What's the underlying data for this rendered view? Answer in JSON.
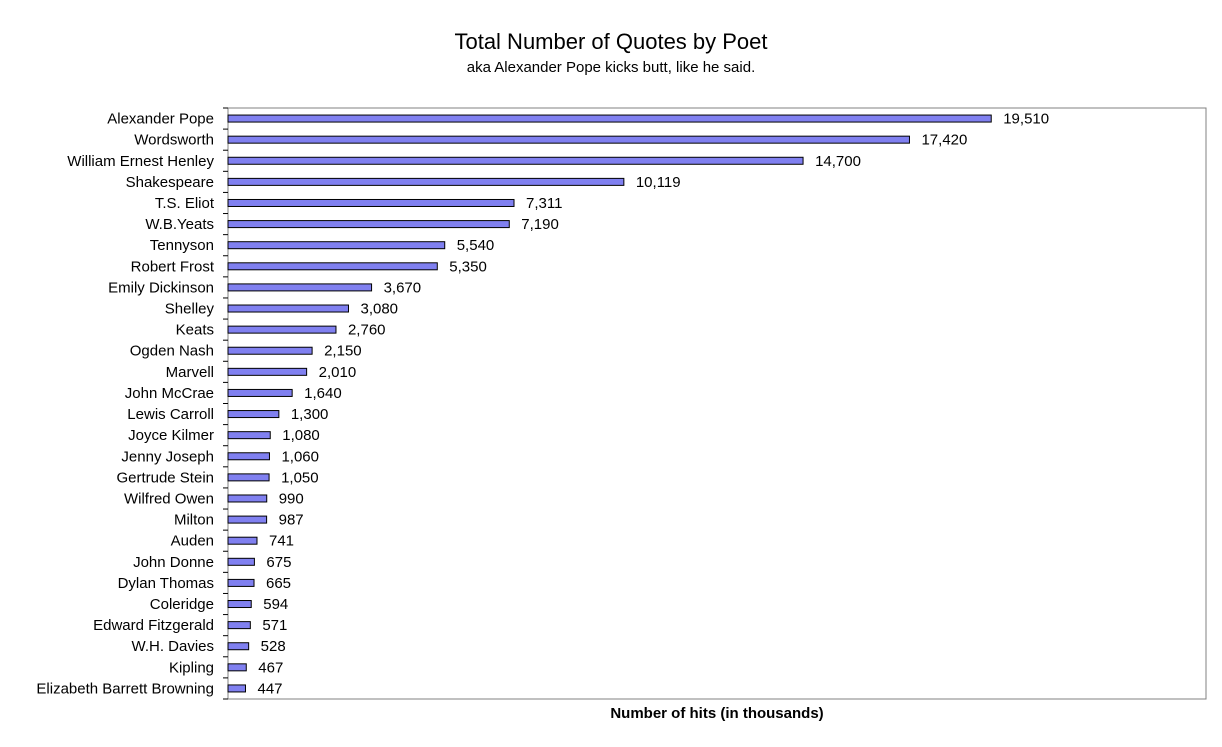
{
  "chart_data": {
    "type": "bar",
    "orientation": "horizontal",
    "title": "Total Number of Quotes by Poet",
    "subtitle": "aka Alexander Pope kicks butt, like he said.",
    "xlabel": "Number of hits (in thousands)",
    "ylabel": "",
    "xlim": [
      0,
      25000
    ],
    "grid": false,
    "bar_color": "#8080f0",
    "categories": [
      "Alexander Pope",
      "Wordsworth",
      "William Ernest Henley",
      "Shakespeare",
      "T.S. Eliot",
      "W.B.Yeats",
      "Tennyson",
      "Robert Frost",
      "Emily Dickinson",
      "Shelley",
      "Keats",
      "Ogden Nash",
      "Marvell",
      "John McCrae",
      "Lewis Carroll",
      "Joyce Kilmer",
      "Jenny Joseph",
      "Gertrude Stein",
      "Wilfred Owen",
      "Milton",
      "Auden",
      "John Donne",
      "Dylan Thomas",
      "Coleridge",
      "Edward Fitzgerald",
      "W.H. Davies",
      "Kipling",
      "Elizabeth Barrett Browning"
    ],
    "values": [
      19510,
      17420,
      14700,
      10119,
      7311,
      7190,
      5540,
      5350,
      3670,
      3080,
      2760,
      2150,
      2010,
      1640,
      1300,
      1080,
      1060,
      1050,
      990,
      987,
      741,
      675,
      665,
      594,
      571,
      528,
      467,
      447
    ],
    "value_labels": [
      "19,510",
      "17,420",
      "14,700",
      "10,119",
      "7,311",
      "7,190",
      "5,540",
      "5,350",
      "3,670",
      "3,080",
      "2,760",
      "2,150",
      "2,010",
      "1,640",
      "1,300",
      "1,080",
      "1,060",
      "1,050",
      "990",
      "987",
      "741",
      "675",
      "665",
      "594",
      "571",
      "528",
      "467",
      "447"
    ]
  }
}
